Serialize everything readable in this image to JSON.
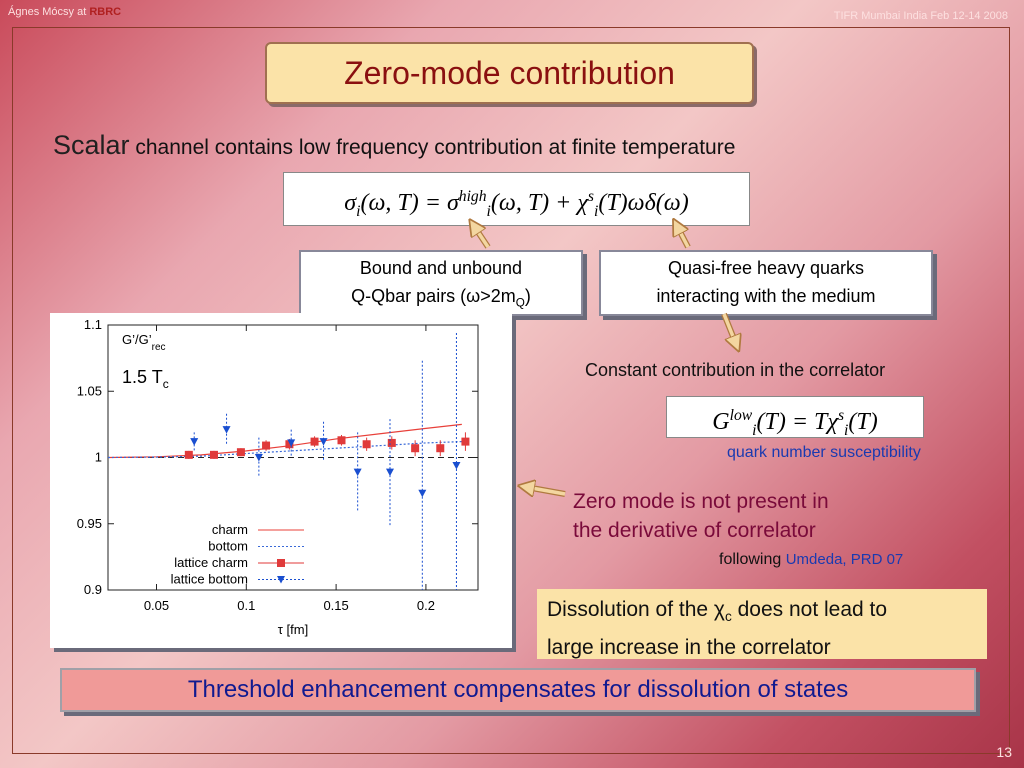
{
  "header": {
    "author": "Ágnes Mócsy",
    "at": "at",
    "org": "RBRC",
    "event": "TIFR Mumbai India Feb 12-14 2008"
  },
  "title": "Zero-mode contribution",
  "intro": {
    "lead": "Scalar",
    "text": "channel contains low frequency contribution at finite temperature"
  },
  "formula1": [
    "σ",
    "i",
    "(ω, T) = σ",
    "high",
    "i",
    "(ω, T) + χ",
    "s",
    "i",
    "(T)ωδ(ω)"
  ],
  "box_bound": {
    "line1": "Bound and unbound",
    "line2": "Q-Qbar pairs (ω>2m",
    "line2_sub": "Q",
    "line2_end": ")"
  },
  "box_free": {
    "line1": "Quasi-free heavy quarks",
    "line2": "interacting with the medium"
  },
  "constant_note": "Constant contribution in the correlator",
  "formula2": [
    "G",
    "low",
    "i",
    "(T) = Tχ",
    "s",
    "i",
    "(T)"
  ],
  "susceptibility": "quark number susceptibility",
  "zero_mode": {
    "line1": "Zero mode is not present in",
    "line2": "the derivative of correlator"
  },
  "reference": {
    "lead": "following",
    "cite": "Umdeda, PRD 07"
  },
  "box_dissolution": {
    "line1": "Dissolution of the χ",
    "line1_sub": "c",
    "line1_end": " does not lead to",
    "line2": "large increase in the correlator"
  },
  "banner": "Threshold enhancement compensates for dissolution of states",
  "page_number": "13",
  "chart_data": {
    "type": "line",
    "ylabel": "G’/G’",
    "ylabel_sub": "rec",
    "annotation": "1.5 T",
    "annotation_sub": "c",
    "xlabel": "τ [fm]",
    "xlim": [
      0.023,
      0.229
    ],
    "ylim": [
      0.9,
      1.1
    ],
    "xticks": [
      0.05,
      0.1,
      0.15,
      0.2
    ],
    "yticks": [
      0.9,
      0.95,
      1,
      1.05,
      1.1
    ],
    "reference_line": 1,
    "series": [
      {
        "name": "charm",
        "color": "#e8403a",
        "style": "solid",
        "x": [
          0.023,
          0.05,
          0.075,
          0.1,
          0.125,
          0.15,
          0.175,
          0.2,
          0.22
        ],
        "values": [
          1.0,
          1.0005,
          1.002,
          1.005,
          1.009,
          1.014,
          1.018,
          1.022,
          1.025
        ]
      },
      {
        "name": "bottom",
        "color": "#3a6ad8",
        "style": "dotted",
        "x": [
          0.023,
          0.05,
          0.075,
          0.1,
          0.125,
          0.15,
          0.175,
          0.2,
          0.22
        ],
        "values": [
          1.0,
          1.0003,
          1.001,
          1.003,
          1.005,
          1.007,
          1.009,
          1.011,
          1.012
        ]
      },
      {
        "name": "lattice charm",
        "color": "#e03a3a",
        "style": "square",
        "x": [
          0.068,
          0.082,
          0.097,
          0.111,
          0.124,
          0.138,
          0.153,
          0.167,
          0.181,
          0.194,
          0.208,
          0.222
        ],
        "values": [
          1.002,
          1.002,
          1.004,
          1.009,
          1.01,
          1.012,
          1.013,
          1.01,
          1.011,
          1.007,
          1.007,
          1.012
        ],
        "errors": [
          0.003,
          0.003,
          0.003,
          0.004,
          0.004,
          0.004,
          0.004,
          0.005,
          0.005,
          0.006,
          0.006,
          0.007
        ]
      },
      {
        "name": "lattice bottom",
        "color": "#1a4fd0",
        "style": "triangle",
        "x": [
          0.071,
          0.089,
          0.107,
          0.125,
          0.143,
          0.162,
          0.18,
          0.198,
          0.217
        ],
        "values": [
          1.012,
          1.021,
          1.0,
          1.011,
          1.012,
          0.989,
          0.989,
          0.973,
          0.994
        ],
        "errors": [
          0.007,
          0.012,
          0.015,
          0.01,
          0.015,
          0.03,
          0.04,
          0.1,
          0.1
        ]
      }
    ]
  }
}
